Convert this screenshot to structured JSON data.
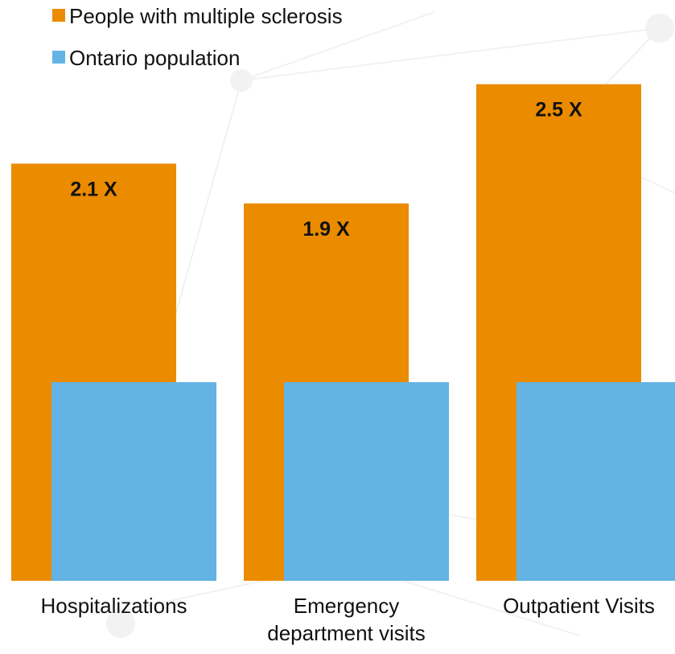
{
  "chart_data": {
    "type": "bar",
    "categories": [
      "Hospitalizations",
      "Emergency\ndepartment visits",
      "Outpatient Visits"
    ],
    "series": [
      {
        "name": "People with multiple sclerosis",
        "values": [
          2.1,
          1.9,
          2.5
        ],
        "color": "#EB8B00"
      },
      {
        "name": "Ontario population",
        "values": [
          1.0,
          1.0,
          1.0
        ],
        "color": "#63B3E4"
      }
    ],
    "data_labels": [
      "2.1 X",
      "1.9 X",
      "2.5 X"
    ],
    "title": "",
    "xlabel": "",
    "ylabel": "",
    "ylim": [
      0,
      2.6
    ],
    "grid": false,
    "legend_position": "top-left",
    "bar_layout": "overlapping"
  }
}
